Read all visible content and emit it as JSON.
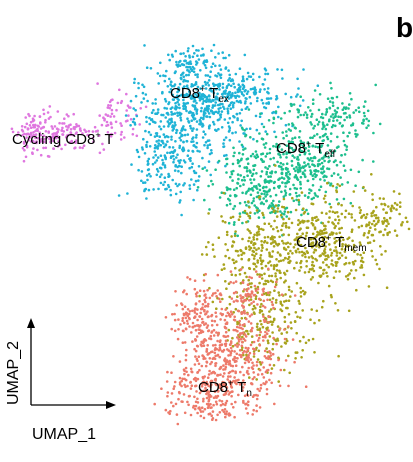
{
  "panel": {
    "letter": "b"
  },
  "chart_data": {
    "type": "scatter",
    "title": "",
    "xlabel": "UMAP_1",
    "ylabel": "UMAP_2",
    "grid": false,
    "legend": "none (labels drawn on clusters)",
    "clusters": [
      {
        "name": "Cycling CD8⁺ T",
        "base": "Cycling CD8",
        "sup": "+",
        "after": " T",
        "sub": "",
        "color": "#df77df"
      },
      {
        "name": "CD8⁺ Tex",
        "base": "CD8",
        "sup": "+",
        "after": " T",
        "sub": "ex",
        "color": "#1fb3d6"
      },
      {
        "name": "CD8⁺ Teff",
        "base": "CD8",
        "sup": "+",
        "after": " T",
        "sub": "eff",
        "color": "#1dbf8e"
      },
      {
        "name": "CD8⁺ Tmem",
        "base": "CD8",
        "sup": "+",
        "after": " T",
        "sub": "mem",
        "color": "#a8a31c"
      },
      {
        "name": "CD8⁺ Tn",
        "base": "CD8",
        "sup": "+",
        "after": " T",
        "sub": "n",
        "color": "#ed7a6a"
      }
    ]
  }
}
